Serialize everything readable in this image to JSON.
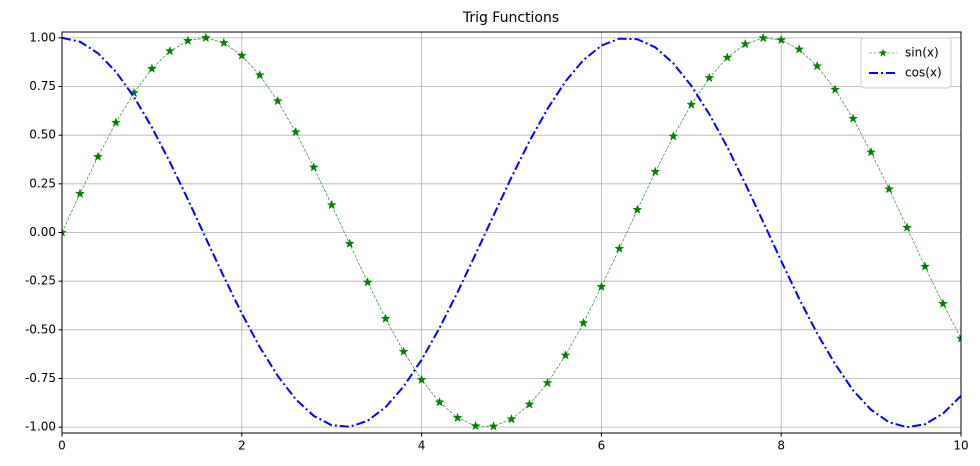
{
  "chart_data": {
    "type": "line",
    "title": "Trig Functions",
    "x": [
      0,
      0.2,
      0.4,
      0.6,
      0.8,
      1,
      1.2,
      1.4,
      1.6,
      1.8,
      2,
      2.2,
      2.4,
      2.6,
      2.8,
      3,
      3.2,
      3.4,
      3.6,
      3.8,
      4,
      4.2,
      4.4,
      4.6,
      4.8,
      5,
      5.2,
      5.4,
      5.6,
      5.8,
      6,
      6.2,
      6.4,
      6.6,
      6.8,
      7,
      7.2,
      7.4,
      7.6,
      7.8,
      8,
      8.2,
      8.4,
      8.6,
      8.8,
      9,
      9.2,
      9.4,
      9.6,
      9.8,
      10
    ],
    "series": [
      {
        "name": "sin(x)",
        "color": "#008000",
        "linestyle": "--",
        "marker": "star",
        "values": [
          0,
          0.199,
          0.389,
          0.565,
          0.717,
          0.841,
          0.932,
          0.985,
          1.0,
          0.974,
          0.909,
          0.808,
          0.675,
          0.516,
          0.335,
          0.141,
          -0.058,
          -0.256,
          -0.443,
          -0.612,
          -0.757,
          -0.872,
          -0.952,
          -0.994,
          -0.996,
          -0.959,
          -0.883,
          -0.773,
          -0.631,
          -0.465,
          -0.279,
          -0.083,
          0.117,
          0.312,
          0.494,
          0.657,
          0.794,
          0.899,
          0.968,
          0.999,
          0.989,
          0.941,
          0.855,
          0.734,
          0.585,
          0.412,
          0.223,
          0.025,
          -0.175,
          -0.366,
          -0.544
        ]
      },
      {
        "name": "cos(x)",
        "color": "#0000ff",
        "linestyle": "-.",
        "values": [
          1,
          0.98,
          0.921,
          0.825,
          0.697,
          0.54,
          0.362,
          0.17,
          -0.029,
          -0.227,
          -0.416,
          -0.589,
          -0.737,
          -0.857,
          -0.942,
          -0.99,
          -0.998,
          -0.967,
          -0.897,
          -0.791,
          -0.654,
          -0.49,
          -0.307,
          -0.112,
          0.087,
          0.284,
          0.469,
          0.635,
          0.776,
          0.886,
          0.96,
          0.996,
          0.993,
          0.951,
          0.869,
          0.754,
          0.608,
          0.439,
          0.251,
          0.054,
          -0.146,
          -0.34,
          -0.519,
          -0.676,
          -0.811,
          -0.911,
          -0.975,
          -1.0,
          -0.985,
          -0.93,
          -0.839
        ]
      }
    ],
    "xlim": [
      0,
      10
    ],
    "xticks": [
      0,
      2,
      4,
      6,
      8,
      10
    ],
    "ylim": [
      -1.03,
      1.03
    ],
    "yticks": [
      {
        "value": -1,
        "label": "-1.00"
      },
      {
        "value": -0.75,
        "label": "-0.75"
      },
      {
        "value": -0.5,
        "label": "-0.50"
      },
      {
        "value": -0.25,
        "label": "-0.25"
      },
      {
        "value": 0,
        "label": "0.00"
      },
      {
        "value": 0.25,
        "label": "0.25"
      },
      {
        "value": 0.5,
        "label": "0.50"
      },
      {
        "value": 0.75,
        "label": "0.75"
      },
      {
        "value": 1,
        "label": "1.00"
      }
    ],
    "grid": true,
    "legend": "upper right"
  }
}
